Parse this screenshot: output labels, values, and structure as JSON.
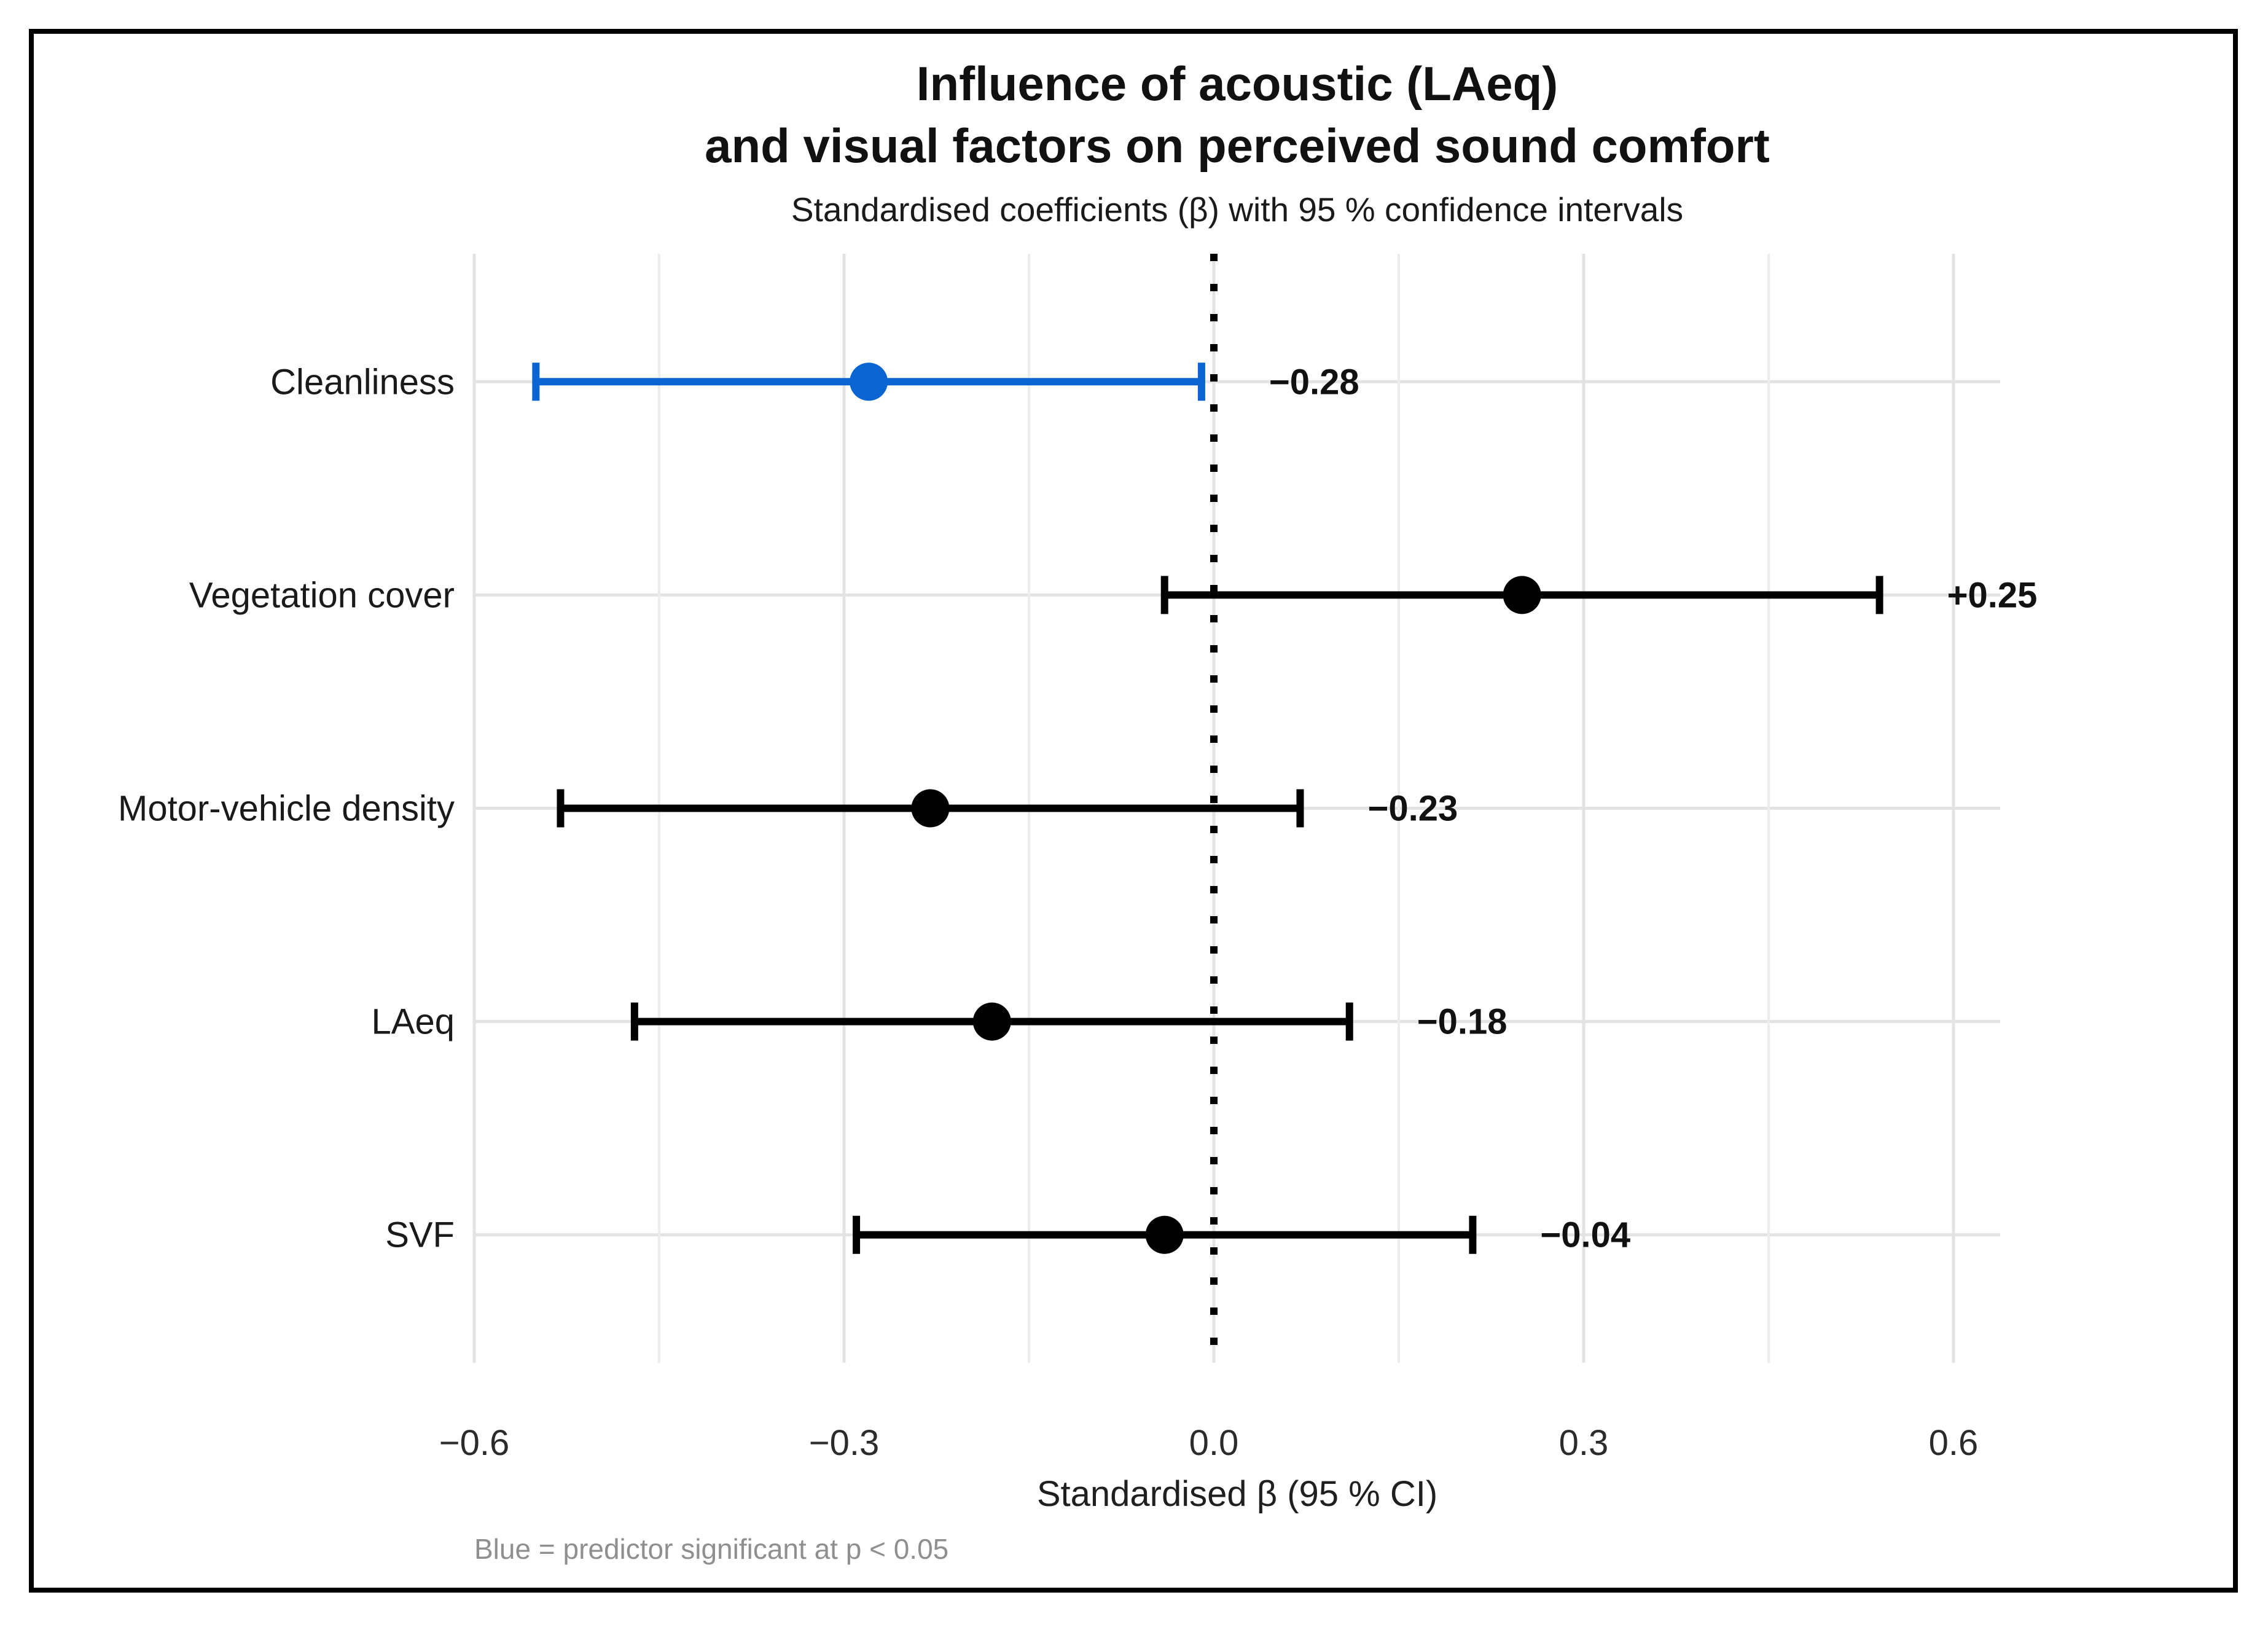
{
  "title": {
    "line1": "Influence of acoustic (LAeq)",
    "line2": "and visual factors on perceived sound comfort",
    "subtitle": "Standardised coefficients (β) with 95 % confidence intervals"
  },
  "axis": {
    "xlabel": "Standardised β  (95 % CI)"
  },
  "footnote": "Blue = predictor significant at p < 0.05",
  "colors": {
    "significant": "#0a64d2",
    "default": "#000000",
    "grid_major": "#e3e3e3",
    "grid_minor": "#ececec",
    "zero_line": "#000000",
    "tick_text": "#2b2b2b",
    "category_text": "#1a1a1a",
    "value_text": "#111111",
    "footnote_text": "#8f8f8f",
    "frame": "#000000"
  },
  "chart_data": {
    "type": "scatter",
    "variant": "forest-dot-whisker",
    "title": "Influence of acoustic (LAeq) and visual factors on perceived sound comfort",
    "subtitle": "Standardised coefficients (β) with 95 % confidence intervals",
    "xlabel": "Standardised β  (95 % CI)",
    "ylabel": "",
    "xlim": [
      -0.6,
      0.64
    ],
    "xticks": [
      -0.6,
      -0.3,
      0.0,
      0.3,
      0.6
    ],
    "xtick_labels": [
      "−0.6",
      "−0.3",
      "0.0",
      "0.3",
      "0.6"
    ],
    "minor_gridticks": [
      -0.45,
      -0.15,
      0.15,
      0.45
    ],
    "zero_reference_line": {
      "x": 0.0,
      "style": "dotted"
    },
    "grid": true,
    "legend_position": "none",
    "categories": [
      "Cleanliness",
      "Vegetation cover",
      "Motor-vehicle density",
      "LAeq",
      "SVF"
    ],
    "rows": [
      {
        "label": "Cleanliness",
        "beta": -0.28,
        "ci_low": -0.55,
        "ci_high": -0.01,
        "value_label": "−0.28",
        "significant": true
      },
      {
        "label": "Vegetation cover",
        "beta": 0.25,
        "ci_low": -0.04,
        "ci_high": 0.54,
        "value_label": "+0.25",
        "significant": false
      },
      {
        "label": "Motor-vehicle density",
        "beta": -0.23,
        "ci_low": -0.53,
        "ci_high": 0.07,
        "value_label": "−0.23",
        "significant": false
      },
      {
        "label": "LAeq",
        "beta": -0.18,
        "ci_low": -0.47,
        "ci_high": 0.11,
        "value_label": "−0.18",
        "significant": false
      },
      {
        "label": "SVF",
        "beta": -0.04,
        "ci_low": -0.29,
        "ci_high": 0.21,
        "value_label": "−0.04",
        "significant": false
      }
    ],
    "annotation": "Blue = predictor significant at p < 0.05"
  }
}
